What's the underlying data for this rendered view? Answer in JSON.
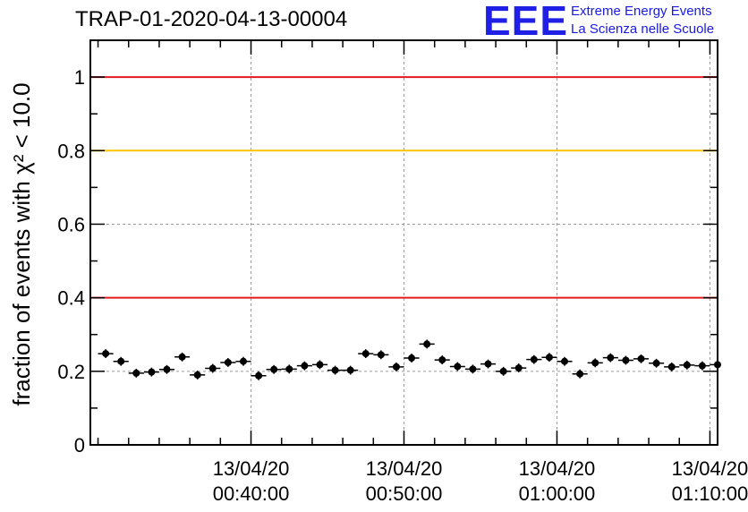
{
  "header": {
    "title": "TRAP-01-2020-04-13-00004",
    "logo_mark": "EEE",
    "logo_line1": "Extreme Energy Events",
    "logo_line2": "La Scienza nelle Scuole"
  },
  "chart_data": {
    "type": "scatter",
    "title": "TRAP-01-2020-04-13-00004",
    "ylabel": "fraction of events with χ² < 10.0",
    "xlabel": "",
    "ylim": [
      0,
      1.1
    ],
    "xlim_minutes_after_0030": [
      -0.5,
      40.5
    ],
    "yticks": [
      "0",
      "0.2",
      "0.4",
      "0.6",
      "0.8",
      "1"
    ],
    "xticks": [
      {
        "t": 10,
        "date": "13/04/20",
        "time": "00:40:00"
      },
      {
        "t": 20,
        "date": "13/04/20",
        "time": "00:50:00"
      },
      {
        "t": 30,
        "date": "13/04/20",
        "time": "01:00:00"
      },
      {
        "t": 40,
        "date": "13/04/20",
        "time": "01:10:00"
      }
    ],
    "grid": true,
    "reference_lines": [
      {
        "y": 1.0,
        "color": "#e41a1c"
      },
      {
        "y": 0.8,
        "color": "#ffc400"
      },
      {
        "y": 0.4,
        "color": "#e41a1c"
      }
    ],
    "series": [
      {
        "x": [
          0.5,
          1.5,
          2.5,
          3.5,
          4.5,
          5.5,
          6.5,
          7.5,
          8.5,
          9.5,
          10.5,
          11.5,
          12.5,
          13.5,
          14.5,
          15.5,
          16.5,
          17.5,
          18.5,
          19.5,
          20.5,
          21.5,
          22.5,
          23.5,
          24.5,
          25.5,
          26.5,
          27.5,
          28.5,
          29.5,
          30.5,
          31.5,
          32.5,
          33.5,
          34.5,
          35.5,
          36.5,
          37.5,
          38.5,
          39.5,
          40.5
        ],
        "y": [
          0.248,
          0.227,
          0.195,
          0.198,
          0.205,
          0.239,
          0.19,
          0.208,
          0.224,
          0.227,
          0.188,
          0.205,
          0.206,
          0.215,
          0.218,
          0.203,
          0.203,
          0.248,
          0.245,
          0.212,
          0.236,
          0.274,
          0.231,
          0.213,
          0.206,
          0.22,
          0.2,
          0.209,
          0.232,
          0.238,
          0.227,
          0.193,
          0.223,
          0.237,
          0.23,
          0.234,
          0.222,
          0.212,
          0.217,
          0.215,
          0.218
        ],
        "yerr": 0.012,
        "color": "#000000"
      }
    ]
  }
}
